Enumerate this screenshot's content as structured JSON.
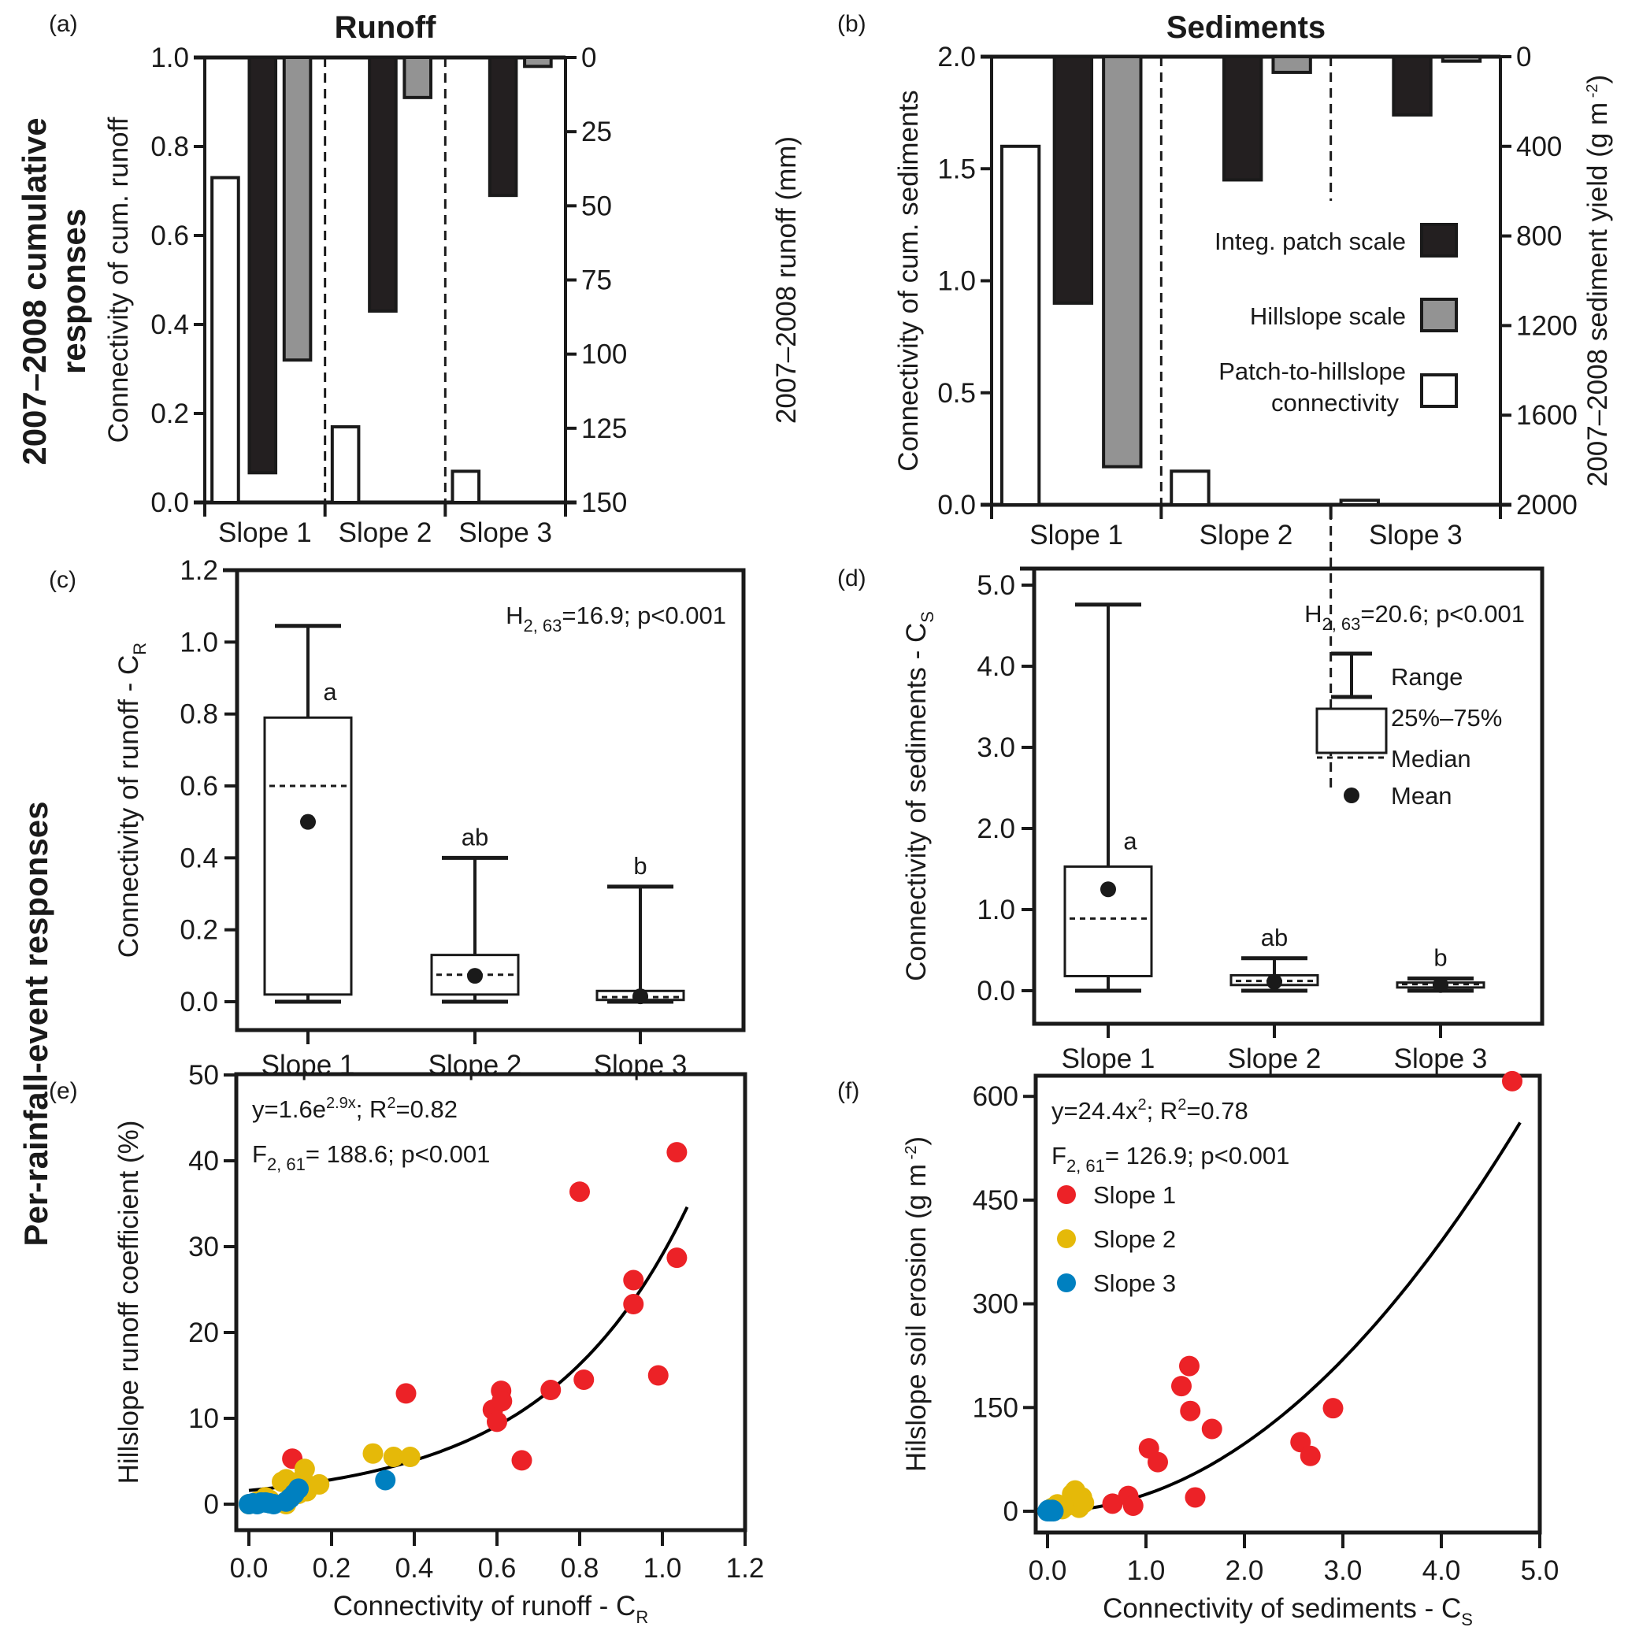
{
  "row_labels": {
    "top": [
      "2007–2008 cumulative",
      "responses"
    ],
    "bottom": "Per-rainfall-event responses"
  },
  "colors": {
    "integ_patch": "#231f20",
    "hillslope": "#939393",
    "patch_to_hillslope": "#ffffff",
    "slope1": "#ec2227",
    "slope2": "#e5b909",
    "slope3": "#0080c0",
    "axis": "#1a1a1a"
  },
  "chart_data": [
    {
      "id": "a",
      "panel_letter": "(a)",
      "type": "bar",
      "title": "Runoff",
      "categories": [
        "Slope 1",
        "Slope 2",
        "Slope 3"
      ],
      "ylabel": "Connectivity of cum. runoff",
      "ylabel_right": "2007–2008 runoff (mm)",
      "ylim": [
        0,
        1.0
      ],
      "yticks": [
        "0.0",
        "0.2",
        "0.4",
        "0.6",
        "0.8",
        "1.0"
      ],
      "ylim_right": [
        0,
        150
      ],
      "yticks_right": [
        "0",
        "25",
        "50",
        "75",
        "100",
        "125",
        "150"
      ],
      "right_axis_inverted": true,
      "series": [
        {
          "name": "Patch-to-hillslope connectivity",
          "axis": "left",
          "values": [
            0.73,
            0.17,
            0.07
          ]
        },
        {
          "name": "Integ. patch scale",
          "axis": "right",
          "values": [
            140,
            85.5,
            46.5
          ]
        },
        {
          "name": "Hillslope scale",
          "axis": "right",
          "values": [
            102,
            13.5,
            3
          ]
        }
      ]
    },
    {
      "id": "b",
      "panel_letter": "(b)",
      "type": "bar",
      "title": "Sediments",
      "categories": [
        "Slope 1",
        "Slope 2",
        "Slope 3"
      ],
      "ylabel": "Connectivity of cum. sediments",
      "ylabel_right": "2007–2008 sediment yield (g m",
      "ylabel_right_sup": "-2",
      "ylabel_right_end": ")",
      "ylim": [
        0,
        2.0
      ],
      "yticks": [
        "0.0",
        "0.5",
        "1.0",
        "1.5",
        "2.0"
      ],
      "ylim_right": [
        0,
        2000
      ],
      "yticks_right": [
        "0",
        "400",
        "800",
        "1200",
        "1600",
        "2000"
      ],
      "right_axis_inverted": true,
      "legend": [
        "Integ. patch scale",
        "Hillslope scale",
        "Patch-to-hillslope",
        "connectivity"
      ],
      "series": [
        {
          "name": "Patch-to-hillslope connectivity",
          "axis": "left",
          "values": [
            1.6,
            0.15,
            0.02
          ]
        },
        {
          "name": "Integ. patch scale",
          "axis": "right",
          "values": [
            1100,
            550,
            260
          ]
        },
        {
          "name": "Hillslope scale",
          "axis": "right",
          "values": [
            1830,
            70,
            20
          ]
        }
      ]
    },
    {
      "id": "c",
      "panel_letter": "(c)",
      "type": "box",
      "categories": [
        "Slope 1",
        "Slope 2",
        "Slope 3"
      ],
      "ylabel": "Connectivity of runoff - C",
      "ylabel_sub": "R",
      "ylim": [
        0,
        1.2
      ],
      "yticks": [
        "0.0",
        "0.2",
        "0.4",
        "0.6",
        "0.8",
        "1.0",
        "1.2"
      ],
      "stat": {
        "main": "H",
        "sub": "2, 63",
        "rest": "=16.9; p<0.001"
      },
      "boxes": [
        {
          "min": 0.0,
          "q1": 0.02,
          "median": 0.6,
          "q3": 0.79,
          "max": 1.045,
          "mean": 0.5,
          "letter": "a"
        },
        {
          "min": 0.0,
          "q1": 0.02,
          "median": 0.075,
          "q3": 0.13,
          "max": 0.4,
          "mean": 0.072,
          "letter": "ab"
        },
        {
          "min": 0.0,
          "q1": 0.005,
          "median": 0.013,
          "q3": 0.03,
          "max": 0.32,
          "mean": 0.015,
          "letter": "b"
        }
      ]
    },
    {
      "id": "d",
      "panel_letter": "(d)",
      "type": "box",
      "categories": [
        "Slope 1",
        "Slope 2",
        "Slope 3"
      ],
      "ylabel": "Connectivity of sediments - C",
      "ylabel_sub": "S",
      "ylim": [
        0,
        5.0
      ],
      "yticks": [
        "0.0",
        "1.0",
        "2.0",
        "3.0",
        "4.0",
        "5.0"
      ],
      "stat": {
        "main": "H",
        "sub": "2, 63",
        "rest": "=20.6; p<0.001"
      },
      "legend": [
        "Range",
        "25%–75%",
        "Median",
        "Mean"
      ],
      "boxes": [
        {
          "min": 0.0,
          "q1": 0.18,
          "median": 0.89,
          "q3": 1.53,
          "max": 4.76,
          "mean": 1.25,
          "letter": "a"
        },
        {
          "min": 0.0,
          "q1": 0.07,
          "median": 0.12,
          "q3": 0.19,
          "max": 0.4,
          "mean": 0.11,
          "letter": "ab"
        },
        {
          "min": 0.0,
          "q1": 0.04,
          "median": 0.08,
          "q3": 0.1,
          "max": 0.15,
          "mean": 0.07,
          "letter": "b"
        }
      ]
    },
    {
      "id": "e",
      "panel_letter": "(e)",
      "type": "scatter",
      "xlabel": "Connectivity of runoff - C",
      "xlabel_sub": "R",
      "ylabel": "Hillslope runoff coefficient (%)",
      "xlim": [
        0,
        1.2
      ],
      "ylim": [
        0,
        50
      ],
      "xticks": [
        "0.0",
        "0.2",
        "0.4",
        "0.6",
        "0.8",
        "1.0",
        "1.2"
      ],
      "yticks": [
        "0",
        "10",
        "20",
        "30",
        "40",
        "50"
      ],
      "equation": {
        "pre": "y=1.6e",
        "sup": "2.9x",
        "mid": "; R",
        "sup2": "2",
        "post": "=0.82"
      },
      "stat": {
        "main": "F",
        "sub": "2, 61",
        "rest": "= 188.6; p<0.001"
      },
      "fit": {
        "type": "exponential",
        "a": 1.6,
        "b": 2.9,
        "x_range": [
          0,
          1.06
        ]
      },
      "series": [
        {
          "name": "Slope 1",
          "points": [
            [
              0.105,
              5.3
            ],
            [
              0.38,
              12.9
            ],
            [
              0.59,
              11.0
            ],
            [
              0.6,
              9.6
            ],
            [
              0.61,
              13.2
            ],
            [
              0.612,
              12.0
            ],
            [
              0.66,
              5.1
            ],
            [
              0.73,
              13.3
            ],
            [
              0.8,
              36.4
            ],
            [
              0.81,
              14.5
            ],
            [
              0.93,
              26.1
            ],
            [
              0.93,
              23.3
            ],
            [
              0.99,
              15.0
            ],
            [
              1.035,
              41.0
            ],
            [
              1.035,
              28.7
            ]
          ]
        },
        {
          "name": "Slope 2",
          "points": [
            [
              0.0,
              0.0
            ],
            [
              0.02,
              0.3
            ],
            [
              0.04,
              0.8
            ],
            [
              0.05,
              0.5
            ],
            [
              0.08,
              2.6
            ],
            [
              0.09,
              2.9
            ],
            [
              0.09,
              0.0
            ],
            [
              0.12,
              1.2
            ],
            [
              0.13,
              3.0
            ],
            [
              0.135,
              4.1
            ],
            [
              0.14,
              1.5
            ],
            [
              0.17,
              2.3
            ],
            [
              0.3,
              5.9
            ],
            [
              0.35,
              5.5
            ],
            [
              0.39,
              5.5
            ]
          ]
        },
        {
          "name": "Slope 3",
          "points": [
            [
              0.0,
              0.0
            ],
            [
              0.01,
              0.1
            ],
            [
              0.02,
              0.0
            ],
            [
              0.03,
              0.2
            ],
            [
              0.04,
              0.2
            ],
            [
              0.05,
              0.1
            ],
            [
              0.06,
              0.0
            ],
            [
              0.09,
              0.3
            ],
            [
              0.1,
              0.7
            ],
            [
              0.11,
              1.2
            ],
            [
              0.12,
              1.8
            ],
            [
              0.33,
              2.8
            ]
          ]
        }
      ]
    },
    {
      "id": "f",
      "panel_letter": "(f)",
      "type": "scatter",
      "xlabel": "Connectivity of sediments - C",
      "xlabel_sub": "S",
      "ylabel": "Hilslope soil erosion (g m",
      "ylabel_sup": "-2",
      "ylabel_end": ")",
      "xlim": [
        0,
        5.0
      ],
      "ylim": [
        0,
        675
      ],
      "xticks": [
        "0.0",
        "1.0",
        "2.0",
        "3.0",
        "4.0",
        "5.0"
      ],
      "yticks": [
        "0",
        "150",
        "300",
        "450",
        "600"
      ],
      "equation": {
        "pre": "y=24.4x",
        "sup": "2",
        "mid": "; R",
        "sup2": "2",
        "post": "=0.78"
      },
      "stat": {
        "main": "F",
        "sub": "2, 61",
        "rest": "= 126.9; p<0.001"
      },
      "legend": [
        "Slope 1",
        "Slope 2",
        "Slope 3"
      ],
      "fit": {
        "type": "power",
        "a": 24.4,
        "b": 2,
        "x_range": [
          0.3,
          4.8
        ]
      },
      "series": [
        {
          "name": "Slope 1",
          "points": [
            [
              0.66,
              11
            ],
            [
              0.82,
              22
            ],
            [
              0.87,
              8
            ],
            [
              1.03,
              91
            ],
            [
              1.12,
              71
            ],
            [
              1.36,
              181
            ],
            [
              1.44,
              210
            ],
            [
              1.45,
              145
            ],
            [
              1.5,
              20
            ],
            [
              1.67,
              119
            ],
            [
              2.57,
              100
            ],
            [
              2.67,
              80
            ],
            [
              2.9,
              149
            ],
            [
              4.72,
              622
            ]
          ]
        },
        {
          "name": "Slope 2",
          "points": [
            [
              0.05,
              5
            ],
            [
              0.1,
              10
            ],
            [
              0.15,
              3
            ],
            [
              0.2,
              8
            ],
            [
              0.25,
              25
            ],
            [
              0.28,
              30
            ],
            [
              0.3,
              15
            ],
            [
              0.32,
              5
            ],
            [
              0.35,
              20
            ],
            [
              0.37,
              12
            ]
          ]
        },
        {
          "name": "Slope 3",
          "points": [
            [
              0.0,
              0
            ],
            [
              0.01,
              2
            ],
            [
              0.02,
              0
            ],
            [
              0.03,
              1
            ],
            [
              0.04,
              0
            ],
            [
              0.05,
              2
            ],
            [
              0.06,
              0
            ]
          ]
        }
      ]
    }
  ]
}
